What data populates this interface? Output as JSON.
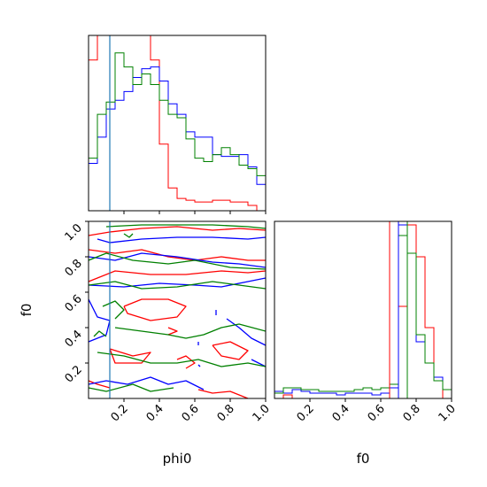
{
  "colors": {
    "series_1": "#ff0000",
    "series_2": "#0000ff",
    "series_3": "#008000",
    "truth": "#1f77b4"
  },
  "chart_data": {
    "type": "corner",
    "parameters": [
      "phi0",
      "f0"
    ],
    "axis_labels": {
      "x_bottom_left": "phi0",
      "x_bottom_right": "f0",
      "y_left": "f0"
    },
    "xlim": [
      0,
      1
    ],
    "ylim": [
      0,
      1
    ],
    "ticks": [
      0.2,
      0.4,
      0.6,
      0.8,
      1.0
    ],
    "tick_labels": [
      "0.2",
      "0.4",
      "0.6",
      "0.8",
      "1.0"
    ],
    "truth_values": {
      "phi0": 0.12
    },
    "bin_edges": [
      0.0,
      0.05,
      0.1,
      0.15,
      0.2,
      0.25,
      0.3,
      0.35,
      0.4,
      0.45,
      0.5,
      0.55,
      0.6,
      0.65,
      0.7,
      0.75,
      0.8,
      0.85,
      0.9,
      0.95,
      1.0
    ],
    "hist_phi0": [
      {
        "color_key": "series_1",
        "density": [
          0.86,
          1.0,
          1.0,
          1.0,
          1.0,
          1.0,
          1.0,
          0.86,
          0.38,
          0.13,
          0.07,
          0.06,
          0.05,
          0.05,
          0.06,
          0.06,
          0.05,
          0.05,
          0.03,
          0.0
        ]
      },
      {
        "color_key": "series_2",
        "density": [
          0.27,
          0.42,
          0.58,
          0.63,
          0.68,
          0.76,
          0.81,
          0.82,
          0.74,
          0.61,
          0.55,
          0.45,
          0.42,
          0.42,
          0.32,
          0.31,
          0.31,
          0.32,
          0.25,
          0.15
        ]
      },
      {
        "color_key": "series_3",
        "density": [
          0.3,
          0.55,
          0.62,
          0.9,
          0.82,
          0.72,
          0.78,
          0.72,
          0.63,
          0.55,
          0.53,
          0.41,
          0.3,
          0.28,
          0.32,
          0.36,
          0.32,
          0.26,
          0.24,
          0.2
        ]
      }
    ],
    "truth_values_f0": [
      {
        "color_key": "series_1",
        "value": 0.65
      },
      {
        "color_key": "series_2",
        "value": 0.7
      },
      {
        "color_key": "series_3",
        "value": 0.75
      }
    ],
    "hist_f0": [
      {
        "color_key": "series_1",
        "density": [
          0.0,
          0.02,
          0.0,
          0.0,
          0.0,
          0.0,
          0.0,
          0.0,
          0.0,
          0.0,
          0.0,
          0.0,
          0.0,
          0.0,
          0.52,
          0.98,
          0.8,
          0.4,
          0.12,
          0.0
        ]
      },
      {
        "color_key": "series_2",
        "density": [
          0.04,
          0.03,
          0.05,
          0.04,
          0.03,
          0.03,
          0.03,
          0.02,
          0.03,
          0.03,
          0.03,
          0.02,
          0.03,
          0.06,
          0.98,
          0.82,
          0.32,
          0.2,
          0.12,
          0.05
        ]
      },
      {
        "color_key": "series_3",
        "density": [
          0.03,
          0.06,
          0.06,
          0.05,
          0.05,
          0.04,
          0.04,
          0.04,
          0.04,
          0.05,
          0.06,
          0.05,
          0.06,
          0.08,
          0.92,
          0.82,
          0.36,
          0.2,
          0.1,
          0.05
        ]
      }
    ],
    "contours": [
      {
        "color_key": "series_1",
        "paths": [
          [
            [
              0.0,
              0.92
            ],
            [
              0.12,
              0.94
            ],
            [
              0.3,
              0.96
            ],
            [
              0.5,
              0.97
            ],
            [
              0.7,
              0.95
            ],
            [
              0.85,
              0.96
            ],
            [
              1.0,
              0.95
            ]
          ],
          [
            [
              0.0,
              0.84
            ],
            [
              0.15,
              0.82
            ],
            [
              0.3,
              0.84
            ],
            [
              0.45,
              0.8
            ],
            [
              0.6,
              0.78
            ],
            [
              0.75,
              0.8
            ],
            [
              0.9,
              0.78
            ],
            [
              1.0,
              0.78
            ]
          ],
          [
            [
              0.0,
              0.66
            ],
            [
              0.15,
              0.72
            ],
            [
              0.35,
              0.7
            ],
            [
              0.55,
              0.7
            ],
            [
              0.75,
              0.72
            ],
            [
              0.9,
              0.71
            ],
            [
              1.0,
              0.72
            ]
          ],
          [
            [
              0.2,
              0.52
            ],
            [
              0.3,
              0.56
            ],
            [
              0.45,
              0.56
            ],
            [
              0.55,
              0.52
            ],
            [
              0.5,
              0.46
            ],
            [
              0.35,
              0.44
            ],
            [
              0.22,
              0.48
            ],
            [
              0.2,
              0.52
            ]
          ],
          [
            [
              0.12,
              0.28
            ],
            [
              0.25,
              0.24
            ],
            [
              0.35,
              0.26
            ],
            [
              0.3,
              0.2
            ],
            [
              0.15,
              0.2
            ],
            [
              0.12,
              0.28
            ]
          ],
          [
            [
              0.45,
              0.4
            ],
            [
              0.5,
              0.38
            ],
            [
              0.45,
              0.36
            ]
          ],
          [
            [
              0.5,
              0.22
            ],
            [
              0.55,
              0.24
            ],
            [
              0.6,
              0.2
            ],
            [
              0.55,
              0.17
            ]
          ],
          [
            [
              0.7,
              0.3
            ],
            [
              0.8,
              0.32
            ],
            [
              0.9,
              0.27
            ],
            [
              0.85,
              0.22
            ],
            [
              0.75,
              0.24
            ],
            [
              0.7,
              0.3
            ]
          ],
          [
            [
              0.62,
              0.05
            ],
            [
              0.7,
              0.03
            ],
            [
              0.8,
              0.04
            ],
            [
              0.9,
              0.0
            ]
          ],
          [
            [
              0.0,
              0.1
            ],
            [
              0.05,
              0.08
            ],
            [
              0.12,
              0.06
            ]
          ]
        ]
      },
      {
        "color_key": "series_2",
        "paths": [
          [
            [
              0.05,
              0.9
            ],
            [
              0.12,
              0.88
            ],
            [
              0.3,
              0.9
            ],
            [
              0.5,
              0.91
            ],
            [
              0.7,
              0.91
            ],
            [
              0.9,
              0.9
            ],
            [
              1.0,
              0.91
            ]
          ],
          [
            [
              0.0,
              0.8
            ],
            [
              0.15,
              0.78
            ],
            [
              0.3,
              0.82
            ],
            [
              0.5,
              0.8
            ],
            [
              0.7,
              0.77
            ],
            [
              0.85,
              0.76
            ],
            [
              1.0,
              0.74
            ]
          ],
          [
            [
              0.0,
              0.64
            ],
            [
              0.2,
              0.63
            ],
            [
              0.4,
              0.65
            ],
            [
              0.6,
              0.64
            ],
            [
              0.75,
              0.63
            ],
            [
              0.9,
              0.66
            ],
            [
              1.0,
              0.68
            ]
          ],
          [
            [
              0.0,
              0.56
            ],
            [
              0.05,
              0.46
            ],
            [
              0.12,
              0.44
            ],
            [
              0.1,
              0.36
            ],
            [
              0.0,
              0.32
            ]
          ],
          [
            [
              0.78,
              0.45
            ],
            [
              0.85,
              0.4
            ],
            [
              0.92,
              0.34
            ],
            [
              1.0,
              0.3
            ]
          ],
          [
            [
              0.72,
              0.5
            ],
            [
              0.72,
              0.47
            ]
          ],
          [
            [
              0.62,
              0.32
            ],
            [
              0.62,
              0.3
            ]
          ],
          [
            [
              0.62,
              0.19
            ],
            [
              0.63,
              0.18
            ]
          ],
          [
            [
              0.0,
              0.08
            ],
            [
              0.1,
              0.1
            ],
            [
              0.22,
              0.08
            ],
            [
              0.35,
              0.12
            ],
            [
              0.45,
              0.08
            ],
            [
              0.55,
              0.1
            ],
            [
              0.65,
              0.05
            ]
          ],
          [
            [
              0.92,
              0.22
            ],
            [
              1.0,
              0.18
            ]
          ]
        ]
      },
      {
        "color_key": "series_3",
        "paths": [
          [
            [
              0.1,
              0.97
            ],
            [
              0.3,
              0.98
            ],
            [
              0.5,
              0.98
            ],
            [
              0.7,
              0.98
            ],
            [
              0.9,
              0.97
            ],
            [
              1.0,
              0.96
            ]
          ],
          [
            [
              0.0,
              0.78
            ],
            [
              0.1,
              0.82
            ],
            [
              0.25,
              0.78
            ],
            [
              0.45,
              0.76
            ],
            [
              0.6,
              0.78
            ],
            [
              0.8,
              0.74
            ],
            [
              1.0,
              0.73
            ]
          ],
          [
            [
              0.0,
              0.64
            ],
            [
              0.15,
              0.66
            ],
            [
              0.3,
              0.62
            ],
            [
              0.5,
              0.63
            ],
            [
              0.7,
              0.66
            ],
            [
              0.85,
              0.64
            ],
            [
              1.0,
              0.62
            ]
          ],
          [
            [
              0.08,
              0.52
            ],
            [
              0.15,
              0.55
            ],
            [
              0.2,
              0.5
            ],
            [
              0.15,
              0.45
            ]
          ],
          [
            [
              0.03,
              0.35
            ],
            [
              0.06,
              0.38
            ],
            [
              0.1,
              0.35
            ]
          ],
          [
            [
              0.15,
              0.4
            ],
            [
              0.3,
              0.38
            ],
            [
              0.45,
              0.36
            ],
            [
              0.55,
              0.34
            ],
            [
              0.65,
              0.36
            ],
            [
              0.75,
              0.4
            ],
            [
              0.85,
              0.42
            ],
            [
              1.0,
              0.38
            ]
          ],
          [
            [
              0.05,
              0.26
            ],
            [
              0.2,
              0.24
            ],
            [
              0.35,
              0.2
            ],
            [
              0.5,
              0.2
            ],
            [
              0.62,
              0.22
            ],
            [
              0.75,
              0.18
            ],
            [
              0.9,
              0.2
            ],
            [
              1.0,
              0.18
            ]
          ],
          [
            [
              0.0,
              0.06
            ],
            [
              0.1,
              0.04
            ],
            [
              0.25,
              0.08
            ],
            [
              0.35,
              0.04
            ],
            [
              0.48,
              0.06
            ]
          ],
          [
            [
              0.2,
              0.93
            ],
            [
              0.23,
              0.91
            ],
            [
              0.25,
              0.93
            ]
          ]
        ]
      }
    ]
  }
}
